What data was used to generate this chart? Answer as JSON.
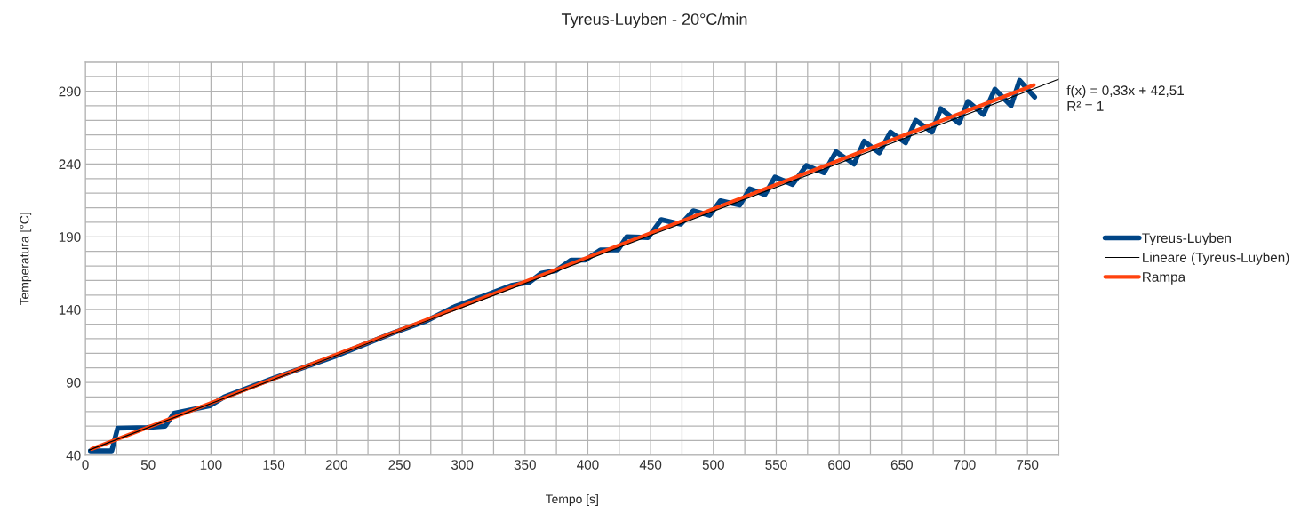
{
  "chart_data": {
    "type": "line",
    "title": "Tyreus-Luyben - 20°C/min",
    "xlabel": "Tempo [s]",
    "ylabel": "Temperatura [°C]",
    "xlim": [
      0,
      775
    ],
    "ylim": [
      40,
      310
    ],
    "xticks": [
      0,
      {
        "value": 25,
        "label": null
      },
      50,
      {
        "value": 75,
        "label": null
      },
      100,
      {
        "value": 125,
        "label": null
      },
      150,
      {
        "value": 175,
        "label": null
      },
      200,
      {
        "value": 225,
        "label": null
      },
      250,
      {
        "value": 275,
        "label": null
      },
      300,
      {
        "value": 325,
        "label": null
      },
      350,
      {
        "value": 375,
        "label": null
      },
      400,
      {
        "value": 425,
        "label": null
      },
      450,
      {
        "value": 475,
        "label": null
      },
      500,
      {
        "value": 525,
        "label": null
      },
      550,
      {
        "value": 575,
        "label": null
      },
      600,
      {
        "value": 625,
        "label": null
      },
      650,
      {
        "value": 675,
        "label": null
      },
      700,
      {
        "value": 725,
        "label": null
      },
      750,
      {
        "value": 775,
        "label": null
      }
    ],
    "yticks": [
      40,
      {
        "value": 50,
        "label": null
      },
      {
        "value": 60,
        "label": null
      },
      {
        "value": 70,
        "label": null
      },
      {
        "value": 80,
        "label": null
      },
      90,
      {
        "value": 100,
        "label": null
      },
      {
        "value": 110,
        "label": null
      },
      {
        "value": 120,
        "label": null
      },
      {
        "value": 130,
        "label": null
      },
      140,
      {
        "value": 150,
        "label": null
      },
      {
        "value": 160,
        "label": null
      },
      {
        "value": 170,
        "label": null
      },
      {
        "value": 180,
        "label": null
      },
      190,
      {
        "value": 200,
        "label": null
      },
      {
        "value": 210,
        "label": null
      },
      {
        "value": 220,
        "label": null
      },
      {
        "value": 230,
        "label": null
      },
      240,
      {
        "value": 250,
        "label": null
      },
      {
        "value": 260,
        "label": null
      },
      {
        "value": 270,
        "label": null
      },
      {
        "value": 280,
        "label": null
      },
      290,
      {
        "value": 300,
        "label": null
      },
      {
        "value": 310,
        "label": null
      }
    ],
    "grid": true,
    "legend": "right",
    "marker": "none",
    "line_style": "solid",
    "series": [
      {
        "name": "Tyreus-Luyben",
        "color": "#004586",
        "x": [
          4,
          21,
          25.7,
          49,
          63.5,
          70.5,
          99,
          110.6,
          148,
          198,
          245,
          271,
          294,
          318,
          339,
          353.6,
          363,
          374.8,
          386.6,
          398,
          410,
          424,
          431,
          448,
          458.5,
          474,
          484,
          497,
          505.6,
          521,
          529,
          541,
          549,
          563,
          574,
          588,
          597.6,
          612,
          620,
          632,
          641,
          653,
          661,
          674,
          681,
          695.5,
          702.6,
          715,
          724,
          737,
          743.7,
          755.7
        ],
        "values": [
          43,
          43,
          58.6,
          59,
          60,
          68.8,
          73.9,
          80,
          92.3,
          107.6,
          124,
          132,
          142,
          149.7,
          156.6,
          158.9,
          165,
          166.8,
          174,
          174,
          181,
          181,
          190,
          189.5,
          201.8,
          198.7,
          207.9,
          204.8,
          214.8,
          211.8,
          223,
          219,
          231,
          226,
          239,
          234,
          248.5,
          240,
          255.7,
          247.7,
          262,
          254.6,
          270,
          262,
          278,
          268,
          283,
          274,
          291.4,
          280,
          297.5,
          286
        ]
      },
      {
        "name": "Lineare (Tyreus-Luyben)",
        "color": "#000000",
        "x": [
          3,
          775
        ],
        "values": [
          43.5,
          298.3
        ]
      },
      {
        "name": "Rampa",
        "color": "#ff420e",
        "x": [
          5,
          755
        ],
        "values": [
          44.2,
          294.2
        ]
      }
    ],
    "annotations": [
      "f(x) = 0,33x + 42,51",
      "R² = 1"
    ]
  }
}
